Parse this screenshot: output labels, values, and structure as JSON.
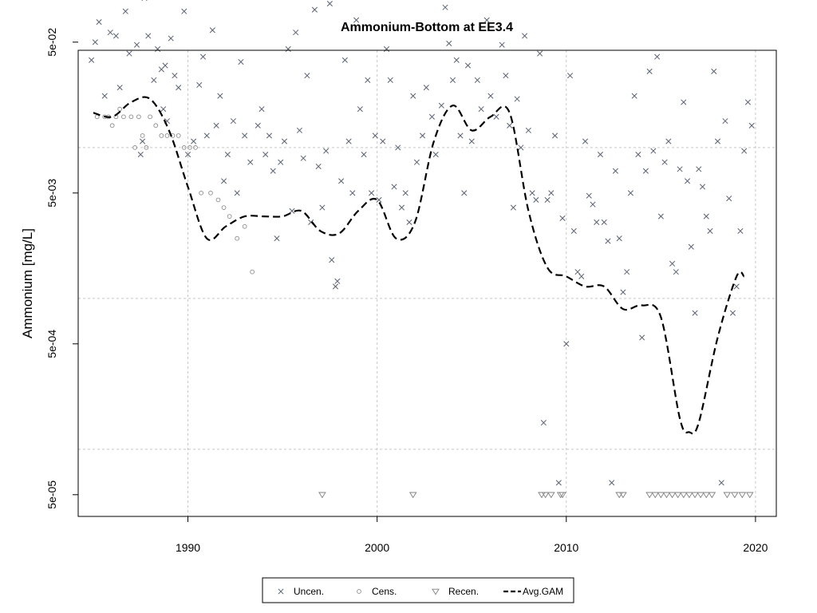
{
  "chart_data": {
    "type": "scatter",
    "title": "Ammonium-Bottom at EE3.4",
    "xlabel": "",
    "ylabel": "Ammonium [mg/L]",
    "xlim": [
      1984.2,
      2021.1
    ],
    "ylim_log10": [
      -4.445,
      -1.355
    ],
    "y_scale": "log",
    "grid": true,
    "legend_position": "bottom",
    "x_ticks": [
      1990,
      2000,
      2010,
      2020
    ],
    "x_tick_labels": [
      "1990",
      "2000",
      "2010",
      "2020"
    ],
    "y_ticks": [
      0.05,
      0.005,
      0.0005,
      5e-05
    ],
    "y_tick_labels": [
      "5e-02",
      "5e-03",
      "5e-04",
      "5e-05"
    ],
    "y_grid_lines": [
      0.1,
      0.01,
      0.001,
      0.0001
    ],
    "colors": {
      "uncen": "#5a6272",
      "cens": "#8c8c8c",
      "recen": "#808080",
      "gam": "#000000",
      "grid": "#c8c8c8"
    },
    "legend": [
      {
        "key": "uncen",
        "label": "Uncen.",
        "symbol": "x"
      },
      {
        "key": "cens",
        "label": "Cens.",
        "symbol": "circle"
      },
      {
        "key": "recen",
        "label": "Recen.",
        "symbol": "triangle-down"
      },
      {
        "key": "gam",
        "label": "Avg.GAM",
        "symbol": "dashed-line"
      }
    ],
    "series": [
      {
        "name": "Uncen.",
        "points": [
          [
            1984.9,
            0.038
          ],
          [
            1985.1,
            0.05
          ],
          [
            1985.3,
            0.068
          ],
          [
            1985.6,
            0.022
          ],
          [
            1985.9,
            0.058
          ],
          [
            1985.9,
            0.1
          ],
          [
            1986.0,
            0.12
          ],
          [
            1986.2,
            0.055
          ],
          [
            1986.4,
            0.025
          ],
          [
            1986.7,
            0.08
          ],
          [
            1986.9,
            0.042
          ],
          [
            1987.0,
            0.1
          ],
          [
            1987.3,
            0.048
          ],
          [
            1987.5,
            0.009
          ],
          [
            1987.6,
            0.011
          ],
          [
            1987.7,
            0.098
          ],
          [
            1987.9,
            0.14
          ],
          [
            1987.9,
            0.055
          ],
          [
            1988.2,
            0.028
          ],
          [
            1988.4,
            0.045
          ],
          [
            1988.6,
            0.033
          ],
          [
            1988.7,
            0.018
          ],
          [
            1988.8,
            0.035
          ],
          [
            1988.9,
            0.015
          ],
          [
            1989.1,
            0.053
          ],
          [
            1989.3,
            0.03
          ],
          [
            1989.5,
            0.025
          ],
          [
            1989.7,
            0.125
          ],
          [
            1989.8,
            0.08
          ],
          [
            1990.0,
            0.009
          ],
          [
            1990.3,
            0.011
          ],
          [
            1990.6,
            0.026
          ],
          [
            1990.8,
            0.04
          ],
          [
            1991.0,
            0.012
          ],
          [
            1991.3,
            0.06
          ],
          [
            1991.5,
            0.014
          ],
          [
            1991.7,
            0.022
          ],
          [
            1991.9,
            0.006
          ],
          [
            1992.1,
            0.009
          ],
          [
            1992.4,
            0.015
          ],
          [
            1992.6,
            0.005
          ],
          [
            1992.8,
            0.037
          ],
          [
            1993.0,
            0.012
          ],
          [
            1993.3,
            0.008
          ],
          [
            1993.5,
            0.11
          ],
          [
            1993.7,
            0.014
          ],
          [
            1993.9,
            0.018
          ],
          [
            1994.1,
            0.009
          ],
          [
            1994.3,
            0.012
          ],
          [
            1994.5,
            0.007
          ],
          [
            1994.7,
            0.0025
          ],
          [
            1994.9,
            0.008
          ],
          [
            1995.1,
            0.011
          ],
          [
            1995.3,
            0.045
          ],
          [
            1995.5,
            0.0038
          ],
          [
            1995.7,
            0.058
          ],
          [
            1995.9,
            0.013
          ],
          [
            1996.1,
            0.0085
          ],
          [
            1996.3,
            0.03
          ],
          [
            1996.5,
            0.0032
          ],
          [
            1996.7,
            0.082
          ],
          [
            1996.9,
            0.0075
          ],
          [
            1997.1,
            0.004
          ],
          [
            1997.3,
            0.0095
          ],
          [
            1997.5,
            0.09
          ],
          [
            1997.6,
            0.0018
          ],
          [
            1997.8,
            0.0012
          ],
          [
            1997.9,
            0.0013
          ],
          [
            1998.1,
            0.006
          ],
          [
            1998.3,
            0.038
          ],
          [
            1998.5,
            0.011
          ],
          [
            1998.7,
            0.005
          ],
          [
            1998.9,
            0.07
          ],
          [
            1999.1,
            0.018
          ],
          [
            1999.3,
            0.009
          ],
          [
            1999.5,
            0.028
          ],
          [
            1999.7,
            0.005
          ],
          [
            1999.9,
            0.012
          ],
          [
            2000.1,
            0.0045
          ],
          [
            2000.3,
            0.011
          ],
          [
            2000.5,
            0.045
          ],
          [
            2000.7,
            0.028
          ],
          [
            2000.9,
            0.0055
          ],
          [
            2001.1,
            0.01
          ],
          [
            2001.3,
            0.004
          ],
          [
            2001.5,
            0.005
          ],
          [
            2001.7,
            0.0032
          ],
          [
            2001.9,
            0.022
          ],
          [
            2002.1,
            0.008
          ],
          [
            2002.4,
            0.012
          ],
          [
            2002.6,
            0.025
          ],
          [
            2002.9,
            0.016
          ],
          [
            2003.1,
            0.009
          ],
          [
            2003.4,
            0.019
          ],
          [
            2003.6,
            0.085
          ],
          [
            2003.8,
            0.049
          ],
          [
            2004.0,
            0.028
          ],
          [
            2004.2,
            0.038
          ],
          [
            2004.4,
            0.012
          ],
          [
            2004.6,
            0.005
          ],
          [
            2004.8,
            0.035
          ],
          [
            2005.0,
            0.011
          ],
          [
            2005.3,
            0.028
          ],
          [
            2005.5,
            0.018
          ],
          [
            2005.8,
            0.07
          ],
          [
            2006.0,
            0.022
          ],
          [
            2006.3,
            0.016
          ],
          [
            2006.6,
            0.048
          ],
          [
            2006.8,
            0.03
          ],
          [
            2007.0,
            0.014
          ],
          [
            2007.2,
            0.004
          ],
          [
            2007.4,
            0.021
          ],
          [
            2007.6,
            0.01
          ],
          [
            2007.8,
            0.055
          ],
          [
            2008.0,
            0.013
          ],
          [
            2008.2,
            0.005
          ],
          [
            2008.4,
            0.0045
          ],
          [
            2008.6,
            0.042
          ],
          [
            2008.8,
            0.00015
          ],
          [
            2009.0,
            0.0045
          ],
          [
            2009.2,
            0.005
          ],
          [
            2009.4,
            0.012
          ],
          [
            2009.6,
            6e-05
          ],
          [
            2009.8,
            0.0034
          ],
          [
            2010.0,
            0.0005
          ],
          [
            2010.2,
            0.03
          ],
          [
            2010.4,
            0.0028
          ],
          [
            2010.6,
            0.0015
          ],
          [
            2010.8,
            0.0014
          ],
          [
            2011.0,
            0.011
          ],
          [
            2011.2,
            0.0048
          ],
          [
            2011.4,
            0.0042
          ],
          [
            2011.6,
            0.0032
          ],
          [
            2011.8,
            0.009
          ],
          [
            2012.0,
            0.0032
          ],
          [
            2012.2,
            0.0024
          ],
          [
            2012.4,
            6e-05
          ],
          [
            2012.6,
            0.007
          ],
          [
            2012.8,
            0.0025
          ],
          [
            2013.0,
            0.0011
          ],
          [
            2013.2,
            0.0015
          ],
          [
            2013.4,
            0.005
          ],
          [
            2013.6,
            0.022
          ],
          [
            2013.8,
            0.009
          ],
          [
            2014.0,
            0.00055
          ],
          [
            2014.2,
            0.007
          ],
          [
            2014.4,
            0.032
          ],
          [
            2014.6,
            0.0095
          ],
          [
            2014.8,
            0.04
          ],
          [
            2015.0,
            0.0035
          ],
          [
            2015.2,
            0.008
          ],
          [
            2015.4,
            0.011
          ],
          [
            2015.6,
            0.0017
          ],
          [
            2015.8,
            0.0015
          ],
          [
            2016.0,
            0.0072
          ],
          [
            2016.2,
            0.02
          ],
          [
            2016.4,
            0.006
          ],
          [
            2016.6,
            0.0022
          ],
          [
            2016.8,
            0.0008
          ],
          [
            2017.0,
            0.0072
          ],
          [
            2017.2,
            0.0055
          ],
          [
            2017.4,
            0.0035
          ],
          [
            2017.6,
            0.0028
          ],
          [
            2017.8,
            0.032
          ],
          [
            2018.0,
            0.011
          ],
          [
            2018.2,
            6e-05
          ],
          [
            2018.4,
            0.015
          ],
          [
            2018.6,
            0.0046
          ],
          [
            2018.8,
            0.0008
          ],
          [
            2019.0,
            0.0012
          ],
          [
            2019.2,
            0.0028
          ],
          [
            2019.4,
            0.0095
          ],
          [
            2019.6,
            0.02
          ],
          [
            2019.8,
            0.014
          ]
        ]
      },
      {
        "name": "Cens.",
        "points": [
          [
            1985.2,
            0.016
          ],
          [
            1985.6,
            0.016
          ],
          [
            1985.8,
            0.016
          ],
          [
            1986.0,
            0.014
          ],
          [
            1986.2,
            0.016
          ],
          [
            1986.4,
            0.018
          ],
          [
            1986.6,
            0.016
          ],
          [
            1987.0,
            0.016
          ],
          [
            1987.2,
            0.01
          ],
          [
            1987.4,
            0.016
          ],
          [
            1987.6,
            0.012
          ],
          [
            1987.8,
            0.01
          ],
          [
            1988.0,
            0.016
          ],
          [
            1988.3,
            0.014
          ],
          [
            1988.6,
            0.012
          ],
          [
            1988.9,
            0.012
          ],
          [
            1989.2,
            0.012
          ],
          [
            1989.5,
            0.012
          ],
          [
            1989.8,
            0.01
          ],
          [
            1990.1,
            0.01
          ],
          [
            1990.4,
            0.01
          ],
          [
            1990.7,
            0.005
          ],
          [
            1991.2,
            0.005
          ],
          [
            1991.6,
            0.0045
          ],
          [
            1991.9,
            0.004
          ],
          [
            1992.2,
            0.0035
          ],
          [
            1992.6,
            0.0025
          ],
          [
            1993.0,
            0.003
          ],
          [
            1993.4,
            0.0015
          ]
        ]
      },
      {
        "name": "Recen.",
        "points": [
          [
            1997.1,
            5e-05
          ],
          [
            2001.9,
            5e-05
          ],
          [
            2008.7,
            5e-05
          ],
          [
            2008.9,
            5e-05
          ],
          [
            2009.2,
            5e-05
          ],
          [
            2009.7,
            5e-05
          ],
          [
            2009.8,
            5e-05
          ],
          [
            2012.8,
            5e-05
          ],
          [
            2013.0,
            5e-05
          ],
          [
            2014.4,
            5e-05
          ],
          [
            2014.7,
            5e-05
          ],
          [
            2015.0,
            5e-05
          ],
          [
            2015.3,
            5e-05
          ],
          [
            2015.6,
            5e-05
          ],
          [
            2015.9,
            5e-05
          ],
          [
            2016.2,
            5e-05
          ],
          [
            2016.5,
            5e-05
          ],
          [
            2016.8,
            5e-05
          ],
          [
            2017.1,
            5e-05
          ],
          [
            2017.4,
            5e-05
          ],
          [
            2017.7,
            5e-05
          ],
          [
            2018.5,
            5e-05
          ],
          [
            2018.9,
            5e-05
          ],
          [
            2019.3,
            5e-05
          ],
          [
            2019.7,
            5e-05
          ]
        ]
      },
      {
        "name": "Avg.GAM",
        "points": [
          [
            1985.0,
            0.017
          ],
          [
            1986.0,
            0.016
          ],
          [
            1987.0,
            0.02
          ],
          [
            1988.0,
            0.021
          ],
          [
            1989.0,
            0.013
          ],
          [
            1990.0,
            0.0055
          ],
          [
            1991.0,
            0.0025
          ],
          [
            1992.0,
            0.003
          ],
          [
            1993.0,
            0.0035
          ],
          [
            1994.0,
            0.0035
          ],
          [
            1995.0,
            0.0035
          ],
          [
            1996.0,
            0.0038
          ],
          [
            1997.0,
            0.0028
          ],
          [
            1998.0,
            0.0027
          ],
          [
            1999.0,
            0.0038
          ],
          [
            2000.0,
            0.0045
          ],
          [
            2001.0,
            0.0025
          ],
          [
            2002.0,
            0.0032
          ],
          [
            2003.0,
            0.011
          ],
          [
            2004.0,
            0.019
          ],
          [
            2005.0,
            0.013
          ],
          [
            2006.0,
            0.016
          ],
          [
            2007.0,
            0.017
          ],
          [
            2008.0,
            0.0038
          ],
          [
            2009.0,
            0.0016
          ],
          [
            2010.0,
            0.0014
          ],
          [
            2011.0,
            0.0012
          ],
          [
            2012.0,
            0.0012
          ],
          [
            2013.0,
            0.00085
          ],
          [
            2014.0,
            0.0009
          ],
          [
            2015.0,
            0.00075
          ],
          [
            2016.0,
            0.00016
          ],
          [
            2016.5,
            0.00013
          ],
          [
            2017.0,
            0.00015
          ],
          [
            2018.0,
            0.00055
          ],
          [
            2019.0,
            0.0014
          ],
          [
            2019.4,
            0.0014
          ]
        ]
      }
    ]
  }
}
